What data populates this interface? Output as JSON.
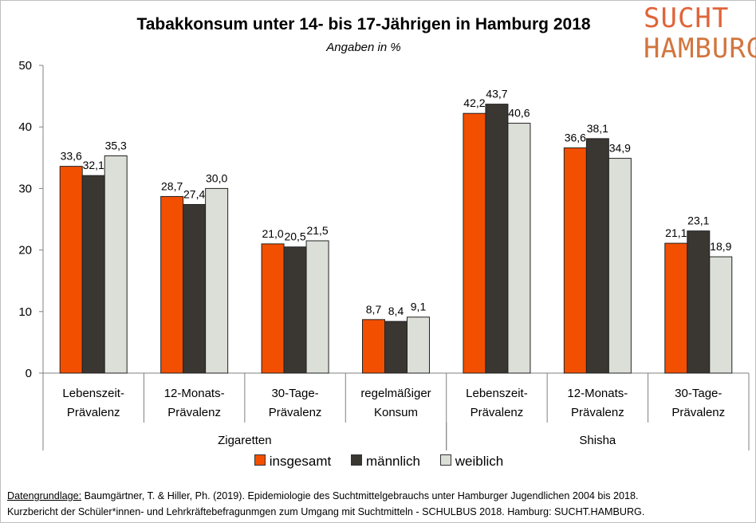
{
  "chart_data": {
    "type": "bar",
    "title": "Tabakkonsum unter 14- bis 17-Jährigen in Hamburg 2018",
    "subtitle": "Angaben in %",
    "ylim": [
      0,
      50
    ],
    "yticks": [
      "0",
      "10",
      "20",
      "30",
      "40",
      "50"
    ],
    "grid": false,
    "legend_position": "bottom",
    "groups": [
      {
        "label": "Zigaretten",
        "categories": [
          [
            "Lebenszeit-",
            "Prävalenz"
          ],
          [
            "12-Monats-",
            "Prävalenz"
          ],
          [
            "30-Tage-",
            "Prävalenz"
          ],
          [
            "regelmäßiger",
            "Konsum"
          ]
        ]
      },
      {
        "label": "Shisha",
        "categories": [
          [
            "Lebenszeit-",
            "Prävalenz"
          ],
          [
            "12-Monats-",
            "Prävalenz"
          ],
          [
            "30-Tage-",
            "Prävalenz"
          ]
        ]
      }
    ],
    "series": [
      {
        "name": "insgesamt",
        "color": "#f24f00",
        "values": [
          33.6,
          28.7,
          21.0,
          8.7,
          42.2,
          36.6,
          21.1
        ],
        "labels": [
          "33,6",
          "28,7",
          "21,0",
          "8,7",
          "42,2",
          "36,6",
          "21,1"
        ]
      },
      {
        "name": "männlich",
        "color": "#3a3632",
        "values": [
          32.1,
          27.4,
          20.5,
          8.4,
          43.7,
          38.1,
          23.1
        ],
        "labels": [
          "32,1",
          "27,4",
          "20,5",
          "8,4",
          "43,7",
          "38,1",
          "23,1"
        ]
      },
      {
        "name": "weiblich",
        "color": "#dcdfd7",
        "values": [
          35.3,
          30.0,
          21.5,
          9.1,
          40.6,
          34.9,
          18.9
        ],
        "labels": [
          "35,3",
          "30,0",
          "21,5",
          "9,1",
          "40,6",
          "34,9",
          "18,9"
        ]
      }
    ]
  },
  "logo": {
    "line1": "SUCHT",
    "line2": "HAMBURG"
  },
  "legend": {
    "items": [
      {
        "label": "insgesamt",
        "color": "#f24f00"
      },
      {
        "label": "männlich",
        "color": "#3a3632"
      },
      {
        "label": "weiblich",
        "color": "#dcdfd7"
      }
    ]
  },
  "footer": {
    "source_label": "Datengrundlage:",
    "source_text": " Baumgärtner, T. & Hiller, Ph. (2019). Epidemiologie des Suchtmittelgebrauchs unter Hamburger Jugendlichen 2004 bis 2018.",
    "line2": "Kurzbericht der Schüler*innen- und Lehrkräftebefragunmgen zum Umgang mit Suchtmitteln - SCHULBUS 2018. Hamburg: SUCHT.HAMBURG."
  }
}
